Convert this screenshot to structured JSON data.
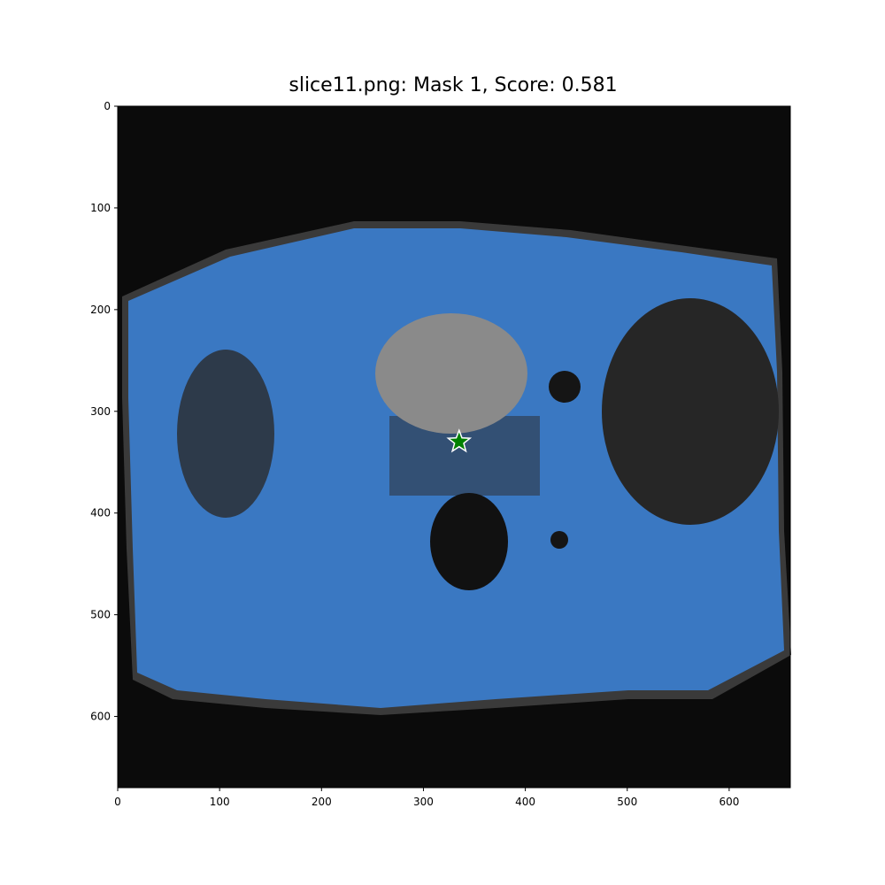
{
  "chart_data": {
    "type": "image",
    "title": "slice11.png: Mask 1, Score: 0.581",
    "xlim": [
      0,
      660
    ],
    "ylim": [
      670,
      0
    ],
    "xticks": [
      0,
      100,
      200,
      300,
      400,
      500,
      600
    ],
    "yticks": [
      0,
      100,
      200,
      300,
      400,
      500,
      600
    ],
    "points": {
      "x": [
        335
      ],
      "y": [
        330
      ],
      "color": "green",
      "marker": "star"
    }
  }
}
